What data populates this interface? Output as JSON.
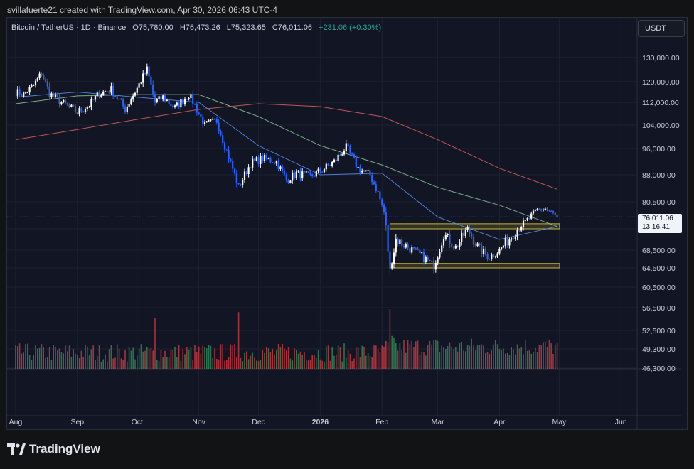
{
  "caption": "svillafuerte21 created with TradingView.com, Apr 30, 2026 06:43 UTC-4",
  "legend": {
    "symbol": "Bitcoin / TetherUS · 1D · Binance",
    "open": "O75,780.00",
    "high": "H76,473.26",
    "low": "L75,323.65",
    "close": "C76,011.06",
    "change": "+231.06 (+0.30%)"
  },
  "currency_button": "USDT",
  "price_tag": {
    "price": "76,011.06",
    "countdown": "13:16:41"
  },
  "brand": "TradingView",
  "colors": {
    "up": "#ffffff",
    "down": "#2962ff",
    "background": "#121624",
    "ma_short": "#5b8def",
    "ma_mid": "#8fc39a",
    "ma_long": "#e0605e",
    "zone": "#c9b43a",
    "vol_up": "#2e7d55",
    "vol_down": "#b8343f"
  },
  "chart_data": {
    "type": "candlestick",
    "symbol": "BTC/USDT",
    "interval": "1D",
    "ylim": [
      46300,
      140000
    ],
    "y_ticks": [
      "130,000.00",
      "120,000.00",
      "112,000.00",
      "104,000.00",
      "96,000.00",
      "88,000.00",
      "80,500.00",
      "72,500.00",
      "68,500.00",
      "64,500.00",
      "60,500.00",
      "56,500.00",
      "52,500.00",
      "49,300.00",
      "46,300.00"
    ],
    "x_ticks": [
      "Aug",
      "Sep",
      "Oct",
      "Nov",
      "Dec",
      "2026",
      "Feb",
      "Mar",
      "Apr",
      "May",
      "Jun"
    ],
    "last": {
      "open": 75780.0,
      "high": 76473.26,
      "low": 75323.65,
      "close": 76011.06
    },
    "price_path": [
      [
        "2025-08-01",
        116000
      ],
      [
        "2025-08-05",
        115000
      ],
      [
        "2025-08-10",
        118500
      ],
      [
        "2025-08-14",
        123500
      ],
      [
        "2025-08-18",
        115500
      ],
      [
        "2025-08-24",
        112000
      ],
      [
        "2025-09-01",
        108500
      ],
      [
        "2025-09-07",
        111000
      ],
      [
        "2025-09-12",
        115500
      ],
      [
        "2025-09-18",
        117000
      ],
      [
        "2025-09-25",
        109500
      ],
      [
        "2025-10-01",
        117500
      ],
      [
        "2025-10-06",
        125000
      ],
      [
        "2025-10-10",
        112000
      ],
      [
        "2025-10-14",
        114000
      ],
      [
        "2025-10-20",
        110000
      ],
      [
        "2025-10-27",
        115000
      ],
      [
        "2025-11-04",
        104000
      ],
      [
        "2025-11-10",
        105500
      ],
      [
        "2025-11-14",
        97000
      ],
      [
        "2025-11-21",
        84500
      ],
      [
        "2025-11-27",
        91500
      ],
      [
        "2025-12-03",
        93000
      ],
      [
        "2025-12-10",
        92000
      ],
      [
        "2025-12-15",
        86500
      ],
      [
        "2025-12-20",
        88500
      ],
      [
        "2025-12-27",
        87500
      ],
      [
        "2026-01-02",
        89500
      ],
      [
        "2026-01-08",
        92000
      ],
      [
        "2026-01-14",
        96500
      ],
      [
        "2026-01-20",
        90000
      ],
      [
        "2026-01-26",
        88000
      ],
      [
        "2026-01-30",
        83000
      ],
      [
        "2026-02-02",
        77500
      ],
      [
        "2026-02-05",
        64000
      ],
      [
        "2026-02-08",
        70500
      ],
      [
        "2026-02-14",
        69000
      ],
      [
        "2026-02-20",
        67500
      ],
      [
        "2026-02-27",
        65000
      ],
      [
        "2026-03-04",
        71500
      ],
      [
        "2026-03-10",
        69000
      ],
      [
        "2026-03-16",
        72500
      ],
      [
        "2026-03-22",
        68500
      ],
      [
        "2026-03-27",
        67000
      ],
      [
        "2026-04-01",
        68500
      ],
      [
        "2026-04-08",
        71500
      ],
      [
        "2026-04-14",
        74500
      ],
      [
        "2026-04-20",
        78000
      ],
      [
        "2026-04-24",
        78500
      ],
      [
        "2026-04-30",
        76011.06
      ]
    ],
    "moving_averages": [
      {
        "color": "#5b8def",
        "points": [
          [
            "2025-08-01",
            114000
          ],
          [
            "2025-09-01",
            116000
          ],
          [
            "2025-10-01",
            114000
          ],
          [
            "2025-11-01",
            112000
          ],
          [
            "2025-12-01",
            97000
          ],
          [
            "2026-01-01",
            88000
          ],
          [
            "2026-02-01",
            88500
          ],
          [
            "2026-03-01",
            76000
          ],
          [
            "2026-04-01",
            70500
          ],
          [
            "2026-04-30",
            73200
          ]
        ]
      },
      {
        "color": "#8fc39a",
        "points": [
          [
            "2025-08-01",
            111500
          ],
          [
            "2025-09-01",
            114500
          ],
          [
            "2025-10-01",
            115000
          ],
          [
            "2025-11-01",
            115000
          ],
          [
            "2025-12-01",
            107000
          ],
          [
            "2026-01-01",
            97000
          ],
          [
            "2026-02-01",
            91000
          ],
          [
            "2026-03-01",
            84500
          ],
          [
            "2026-04-01",
            79500
          ],
          [
            "2026-04-30",
            73200
          ]
        ]
      },
      {
        "color": "#e0605e",
        "points": [
          [
            "2025-08-01",
            99000
          ],
          [
            "2025-09-01",
            102500
          ],
          [
            "2025-10-01",
            106000
          ],
          [
            "2025-11-01",
            109500
          ],
          [
            "2025-12-01",
            111500
          ],
          [
            "2026-01-01",
            110500
          ],
          [
            "2026-02-01",
            107000
          ],
          [
            "2026-03-01",
            99000
          ],
          [
            "2026-04-01",
            90000
          ],
          [
            "2026-04-30",
            84000
          ]
        ]
      }
    ],
    "zones": [
      {
        "from": "2026-02-05",
        "to": "2026-05-01",
        "low": 72500,
        "high": 74000
      },
      {
        "from": "2026-02-05",
        "to": "2026-05-01",
        "low": 64500,
        "high": 65500
      }
    ],
    "volume_spikes": [
      [
        "2025-10-10",
        0.85
      ],
      [
        "2025-11-21",
        0.95
      ],
      [
        "2026-02-05",
        1.0
      ],
      [
        "2026-02-06",
        0.55
      ]
    ]
  }
}
